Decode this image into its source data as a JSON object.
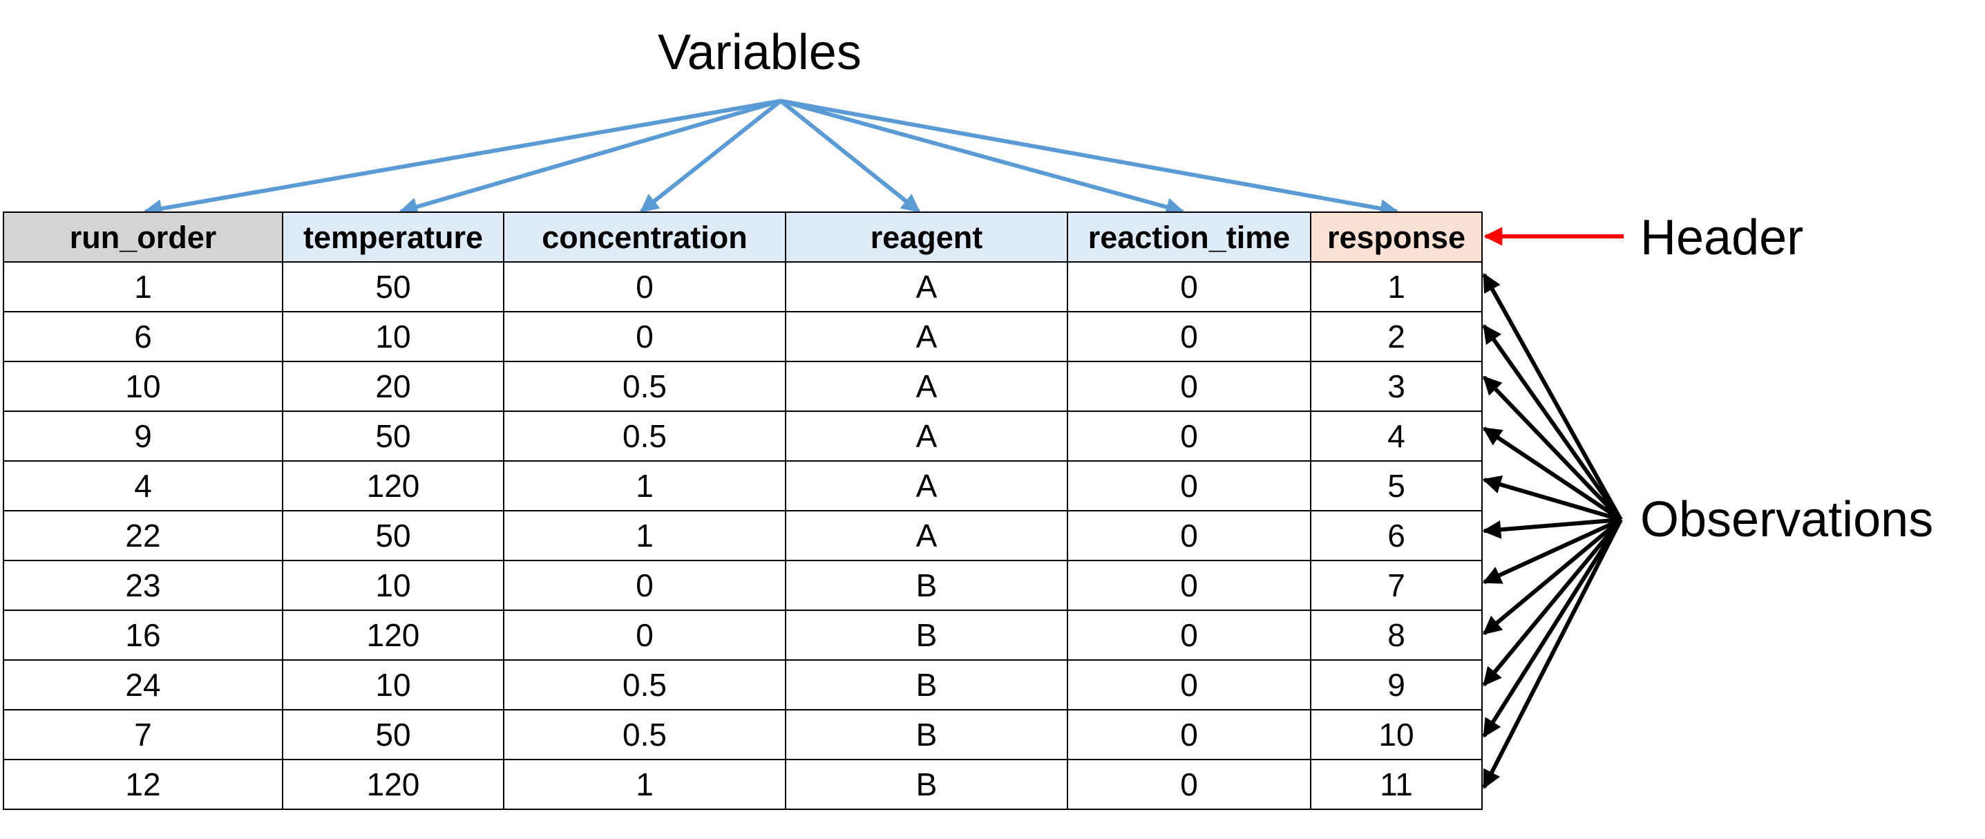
{
  "labels": {
    "variables": "Variables",
    "header": "Header",
    "observations": "Observations"
  },
  "colors": {
    "variable_arrows": "#5b9bd5",
    "header_arrow": "#ff0000",
    "observation_arrows": "#000000",
    "index_header_fill": "#d4d4d4",
    "variable_header_fill": "#deebf7",
    "response_header_fill": "#fbe1d4"
  },
  "table": {
    "columns": [
      "run_order",
      "temperature",
      "concentration",
      "reagent",
      "reaction_time",
      "response"
    ],
    "rows": [
      [
        "1",
        "50",
        "0",
        "A",
        "0",
        "1"
      ],
      [
        "6",
        "10",
        "0",
        "A",
        "0",
        "2"
      ],
      [
        "10",
        "20",
        "0.5",
        "A",
        "0",
        "3"
      ],
      [
        "9",
        "50",
        "0.5",
        "A",
        "0",
        "4"
      ],
      [
        "4",
        "120",
        "1",
        "A",
        "0",
        "5"
      ],
      [
        "22",
        "50",
        "1",
        "A",
        "0",
        "6"
      ],
      [
        "23",
        "10",
        "0",
        "B",
        "0",
        "7"
      ],
      [
        "16",
        "120",
        "0",
        "B",
        "0",
        "8"
      ],
      [
        "24",
        "10",
        "0.5",
        "B",
        "0",
        "9"
      ],
      [
        "7",
        "50",
        "0.5",
        "B",
        "0",
        "10"
      ],
      [
        "12",
        "120",
        "1",
        "B",
        "0",
        "11"
      ]
    ]
  }
}
